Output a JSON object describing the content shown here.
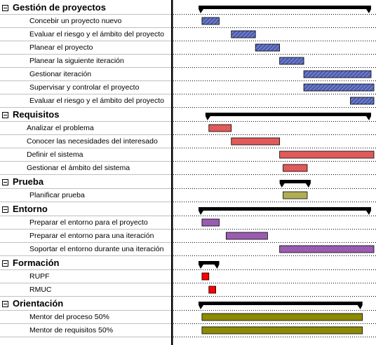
{
  "chart_data": {
    "type": "gantt",
    "groups": [
      {
        "name": "Gestión de proyectos",
        "summary": [
          0.0,
          1.0
        ],
        "tasks": [
          {
            "name": "Concebir un proyecto nuevo",
            "span": [
              0.02,
              0.12
            ],
            "fill": "#4e5db0",
            "style": "hatch"
          },
          {
            "name": "Evaluar el riesgo y el ámbito del proyecto",
            "span": [
              0.19,
              0.33
            ],
            "fill": "#4e5db0",
            "style": "hatch"
          },
          {
            "name": "Planear el proyecto",
            "span": [
              0.33,
              0.47
            ],
            "fill": "#4e5db0",
            "style": "hatch"
          },
          {
            "name": "Planear la siguiente iteración",
            "span": [
              0.47,
              0.61
            ],
            "fill": "#4e5db0",
            "style": "hatch"
          },
          {
            "name": "Gestionar iteración",
            "span": [
              0.61,
              1.0
            ],
            "fill": "#4e5db0",
            "style": "hatch"
          },
          {
            "name": "Supervisar y controlar el proyecto",
            "span": [
              0.61,
              1.02
            ],
            "fill": "#4e5db0",
            "style": "hatch"
          },
          {
            "name": "Evaluar el riesgo y el ámbito del proyecto",
            "span": [
              0.88,
              1.02
            ],
            "fill": "#4e5db0",
            "style": "hatch"
          }
        ]
      },
      {
        "name": "Requisitos",
        "summary": [
          0.04,
          1.0
        ],
        "tasks": [
          {
            "name": "Analizar el problema",
            "span": [
              0.06,
              0.19
            ],
            "fill": "#e05a5a",
            "style": "solid"
          },
          {
            "name": "Conocer las necesidades del interesado",
            "span": [
              0.19,
              0.47
            ],
            "fill": "#e05a5a",
            "style": "solid"
          },
          {
            "name": "Definir el sistema",
            "span": [
              0.47,
              1.02
            ],
            "fill": "#e05a5a",
            "style": "solid"
          },
          {
            "name": "Gestionar el ámbito del sistema",
            "span": [
              0.49,
              0.63
            ],
            "fill": "#e05a5a",
            "style": "solid"
          }
        ]
      },
      {
        "name": "Prueba",
        "summary": [
          0.47,
          0.65
        ],
        "tasks": [
          {
            "name": "Planificar prueba",
            "span": [
              0.49,
              0.63
            ],
            "fill": "#b0ad55",
            "style": "solid"
          }
        ]
      },
      {
        "name": "Entorno",
        "summary": [
          0.0,
          1.0
        ],
        "tasks": [
          {
            "name": "Preparar el entorno para el proyecto",
            "span": [
              0.02,
              0.12
            ],
            "fill": "#9a5cb0",
            "style": "solid"
          },
          {
            "name": "Preparar el entorno para una iteración",
            "span": [
              0.16,
              0.4
            ],
            "fill": "#9a5cb0",
            "style": "solid"
          },
          {
            "name": "Soportar el entorno durante una iteración",
            "span": [
              0.47,
              1.02
            ],
            "fill": "#9a5cb0",
            "style": "solid"
          }
        ]
      },
      {
        "name": "Formación",
        "summary": [
          0.0,
          0.12
        ],
        "tasks": [
          {
            "name": "RUPF",
            "span": [
              0.02,
              0.06
            ],
            "fill": "#ff0000",
            "style": "solid"
          },
          {
            "name": "RMUC",
            "span": [
              0.06,
              0.1
            ],
            "fill": "#ff0000",
            "style": "solid"
          }
        ]
      },
      {
        "name": "Orientación",
        "summary": [
          0.0,
          0.95
        ],
        "tasks": [
          {
            "name": "Mentor del proceso 50%",
            "span": [
              0.02,
              0.95
            ],
            "fill": "#8b8a00",
            "style": "solid"
          },
          {
            "name": "Mentor de requisitos 50%",
            "span": [
              0.02,
              0.95
            ],
            "fill": "#8b8a00",
            "style": "solid"
          }
        ]
      }
    ]
  }
}
